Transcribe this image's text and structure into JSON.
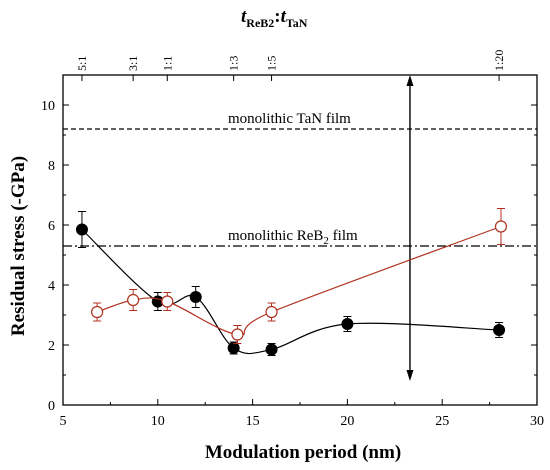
{
  "chart_data": {
    "type": "scatter",
    "xlabel": "Modulation period (nm)",
    "ylabel": "Residual stress (-GPa)",
    "top_axis": {
      "label_main": "t",
      "label_sub1": "ReB2",
      "sep": ":",
      "label_main2": "t",
      "label_sub2": "TaN",
      "ticks": [
        {
          "x": 6.0,
          "label": "5:1"
        },
        {
          "x": 8.7,
          "label": "3:1"
        },
        {
          "x": 10.5,
          "label": "1:1"
        },
        {
          "x": 14.0,
          "label": "1:3"
        },
        {
          "x": 16.0,
          "label": "1:5"
        },
        {
          "x": 28.0,
          "label": "1:20"
        }
      ]
    },
    "xlim": [
      5,
      30
    ],
    "ylim": [
      0,
      11
    ],
    "x_ticks": [
      5,
      10,
      15,
      20,
      25,
      30
    ],
    "y_ticks": [
      0,
      2,
      4,
      6,
      8,
      10
    ],
    "reference_lines": [
      {
        "name": "monolithic TaN film",
        "y": 9.2,
        "style": "dashed"
      },
      {
        "name": "monolithic ReB2 film",
        "y": 5.3,
        "style": "dashdot",
        "label_main": "monolithic ReB",
        "label_sub": "2",
        "label_tail": " film"
      }
    ],
    "series": [
      {
        "marker": "filled-circle",
        "color": "#000000",
        "x": [
          6.0,
          10.0,
          12.0,
          14.0,
          16.0,
          20.0,
          28.0
        ],
        "y": [
          5.85,
          3.45,
          3.6,
          1.9,
          1.85,
          2.7,
          2.5
        ],
        "err": [
          0.6,
          0.3,
          0.35,
          0.2,
          0.2,
          0.25,
          0.25
        ]
      },
      {
        "marker": "open-circle",
        "color": "#b0301f",
        "x": [
          6.8,
          8.7,
          10.5,
          14.2,
          16.0,
          28.1
        ],
        "y": [
          3.1,
          3.5,
          3.45,
          2.35,
          3.1,
          5.95
        ],
        "err": [
          0.3,
          0.35,
          0.3,
          0.3,
          0.3,
          0.6
        ]
      }
    ],
    "arrow": {
      "x": 23.3,
      "y_top": 11.0,
      "y_bottom": 0.8
    }
  }
}
